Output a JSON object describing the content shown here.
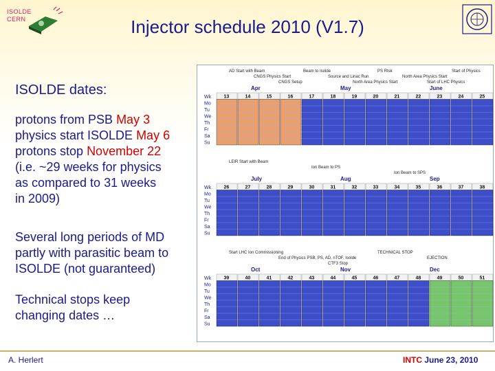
{
  "header": {
    "logo_line1": "ISOLDE",
    "logo_line2": "CERN",
    "title": "Injector schedule 2010 (V1.7)"
  },
  "left": {
    "heading": "ISOLDE dates:",
    "line1_prefix": "protons from PSB ",
    "line1_red": "May 3",
    "line2_prefix": "physics start ISOLDE ",
    "line2_red": "May 6",
    "line3_prefix": "protons stop ",
    "line3_red": "November 22",
    "line4": "(i.e. ~29 weeks for physics",
    "line5": "as compared to 31 weeks",
    "line6": "in 2009)",
    "md1": "Several long periods of MD",
    "md2": "partly with parasitic beam to",
    "md3": "ISOLDE (not guaranteed)",
    "ts1": "Technical stops keep",
    "ts2": "changing dates …"
  },
  "calendar": {
    "day_labels": [
      "Wk",
      "Mo",
      "Tu",
      "We",
      "Th",
      "Fr",
      "Sa",
      "Su"
    ],
    "block1": {
      "months": [
        "Apr",
        "May",
        "June"
      ],
      "weeks": [
        "13",
        "14",
        "15",
        "16",
        "17",
        "18",
        "19",
        "20",
        "21",
        "22",
        "23",
        "24",
        "25"
      ],
      "annotations": [
        "AD Start with Beam",
        "CNGS Physics Start",
        "CNGS Setup",
        "Beam to Isolde",
        "Source and Linac Run",
        "North Area Physics Start",
        "PS Rtsk",
        "North Area Physics Start",
        "Start of LHC Physics",
        "Start of Physics"
      ]
    },
    "block2": {
      "months": [
        "July",
        "Aug",
        "Sep"
      ],
      "weeks": [
        "26",
        "27",
        "28",
        "29",
        "30",
        "31",
        "32",
        "33",
        "34",
        "35",
        "36",
        "37",
        "38"
      ],
      "annotations": [
        "LEIR Start with Beam",
        "Ion Beam to PS",
        "Ion Beam to SPS"
      ]
    },
    "block3": {
      "months": [
        "Oct",
        "Nov",
        "Dec"
      ],
      "weeks": [
        "39",
        "40",
        "41",
        "42",
        "43",
        "44",
        "45",
        "46",
        "47",
        "48",
        "49",
        "50",
        "51"
      ],
      "annotations": [
        "Start LHC Ion Commissioning",
        "End of Physics PSB, PS, AD, nTOF, Isolde",
        "CTF3 Stop",
        "TECHNICAL STOP",
        "EJECTION"
      ]
    }
  },
  "footer": {
    "author": "A. Herlert",
    "intc": "INTC",
    "date": "June 23, 2010"
  },
  "colors": {
    "title": "#1a1a8c",
    "red": "#d30000",
    "week_blue": "#3d4ec8",
    "stop_green": "#77c66b",
    "header_band": "#fff6cf"
  }
}
